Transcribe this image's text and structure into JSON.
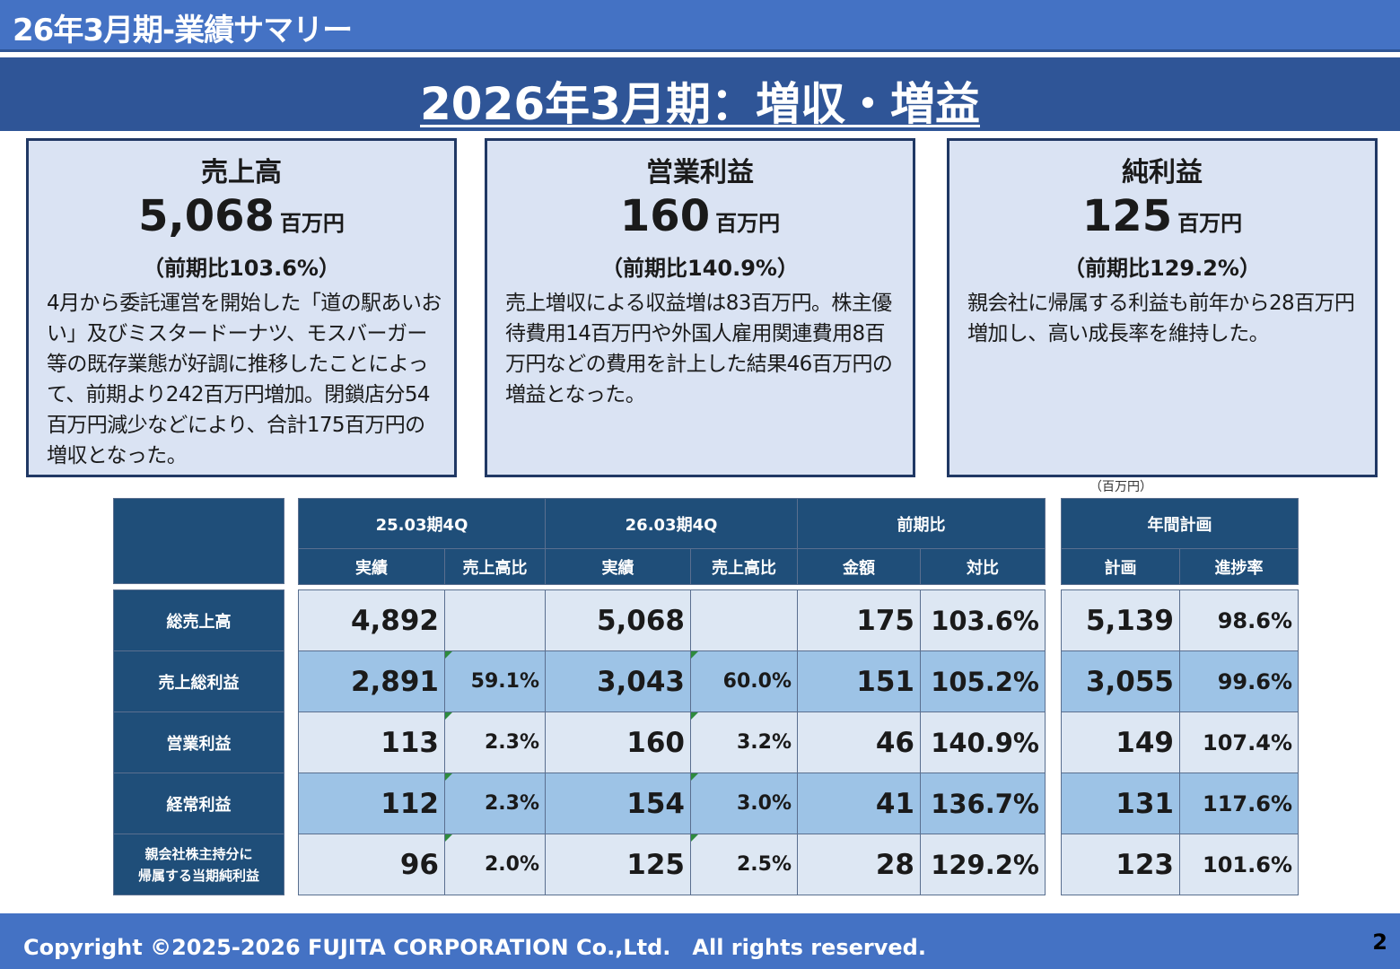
{
  "header": {
    "title": "26年3月期-業績サマリー"
  },
  "banner": {
    "title": "2026年3月期：増収・増益"
  },
  "cards": [
    {
      "label": "売上高",
      "value": "5,068",
      "unit": "百万円",
      "ratio": "（前期比103.6%）",
      "description": "4月から委託運営を開始した「道の駅あいおい」及びミスタードーナツ、モスバーガー等の既存業態が好調に推移したことによって、前期より242百万円増加。閉鎖店分54百万円減少などにより、合計175百万円の増収となった。"
    },
    {
      "label": "営業利益",
      "value": "160",
      "unit": "百万円",
      "ratio": "（前期比140.9%）",
      "description": "売上増収による収益増は83百万円。株主優待費用14百万円や外国人雇用関連費用8百万円などの費用を計上した結果46百万円の増益となった。"
    },
    {
      "label": "純利益",
      "value": "125",
      "unit": "百万円",
      "ratio": "（前期比129.2%）",
      "description": "親会社に帰属する利益も前年から28百万円増加し、高い成長率を維持した。"
    }
  ],
  "table": {
    "unit_note": "（百万円）",
    "groups": {
      "prev": "25.03期4Q",
      "curr": "26.03期4Q",
      "yoy": "前期比",
      "plan": "年間計画"
    },
    "subheaders": {
      "actual": "実績",
      "sales_ratio": "売上高比",
      "amount": "金額",
      "ratio": "対比",
      "plan": "計画",
      "progress": "進捗率"
    },
    "rows": [
      {
        "label": "総売上高",
        "prev_actual": "4,892",
        "prev_ratio": "",
        "curr_actual": "5,068",
        "curr_ratio": "",
        "yoy_amount": "175",
        "yoy_ratio": "103.6%",
        "plan": "5,139",
        "progress": "98.6%"
      },
      {
        "label": "売上総利益",
        "prev_actual": "2,891",
        "prev_ratio": "59.1%",
        "curr_actual": "3,043",
        "curr_ratio": "60.0%",
        "yoy_amount": "151",
        "yoy_ratio": "105.2%",
        "plan": "3,055",
        "progress": "99.6%"
      },
      {
        "label": "営業利益",
        "prev_actual": "113",
        "prev_ratio": "2.3%",
        "curr_actual": "160",
        "curr_ratio": "3.2%",
        "yoy_amount": "46",
        "yoy_ratio": "140.9%",
        "plan": "149",
        "progress": "107.4%"
      },
      {
        "label": "経常利益",
        "prev_actual": "112",
        "prev_ratio": "2.3%",
        "curr_actual": "154",
        "curr_ratio": "3.0%",
        "yoy_amount": "41",
        "yoy_ratio": "136.7%",
        "plan": "131",
        "progress": "117.6%"
      },
      {
        "label_line1": "親会社株主持分に",
        "label_line2": "帰属する当期純利益",
        "prev_actual": "96",
        "prev_ratio": "2.0%",
        "curr_actual": "125",
        "curr_ratio": "2.5%",
        "yoy_amount": "28",
        "yoy_ratio": "129.2%",
        "plan": "123",
        "progress": "101.6%"
      }
    ]
  },
  "footer": {
    "copyright": "Copyright ©2025-2026 FUJITA CORPORATION Co.,Ltd.　All rights reserved.",
    "page_number": "2"
  }
}
